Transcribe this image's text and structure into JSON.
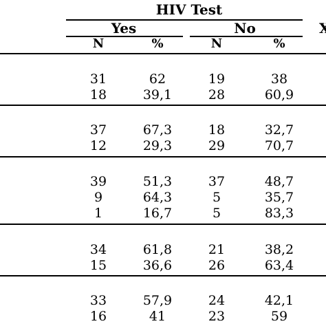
{
  "header": {
    "group_title": "HIV Test",
    "yes_label": "Yes",
    "no_label": "No",
    "clipped_col_label": "X",
    "n_label": "N",
    "pct_label": "%"
  },
  "groups": [
    {
      "rows": [
        {
          "yes_n": "31",
          "yes_pct": "62",
          "no_n": "19",
          "no_pct": "38"
        },
        {
          "yes_n": "18",
          "yes_pct": "39,1",
          "no_n": "28",
          "no_pct": "60,9"
        }
      ]
    },
    {
      "rows": [
        {
          "yes_n": "37",
          "yes_pct": "67,3",
          "no_n": "18",
          "no_pct": "32,7"
        },
        {
          "yes_n": "12",
          "yes_pct": "29,3",
          "no_n": "29",
          "no_pct": "70,7"
        }
      ]
    },
    {
      "rows": [
        {
          "yes_n": "39",
          "yes_pct": "51,3",
          "no_n": "37",
          "no_pct": "48,7"
        },
        {
          "yes_n": "9",
          "yes_pct": "64,3",
          "no_n": "5",
          "no_pct": "35,7"
        },
        {
          "yes_n": "1",
          "yes_pct": "16,7",
          "no_n": "5",
          "no_pct": "83,3"
        }
      ]
    },
    {
      "rows": [
        {
          "yes_n": "34",
          "yes_pct": "61,8",
          "no_n": "21",
          "no_pct": "38,2"
        },
        {
          "yes_n": "15",
          "yes_pct": "36,6",
          "no_n": "26",
          "no_pct": "63,4"
        }
      ]
    },
    {
      "rows": [
        {
          "yes_n": "33",
          "yes_pct": "57,9",
          "no_n": "24",
          "no_pct": "42,1"
        },
        {
          "yes_n": "16",
          "yes_pct": "41",
          "no_n": "23",
          "no_pct": "59"
        }
      ]
    }
  ]
}
